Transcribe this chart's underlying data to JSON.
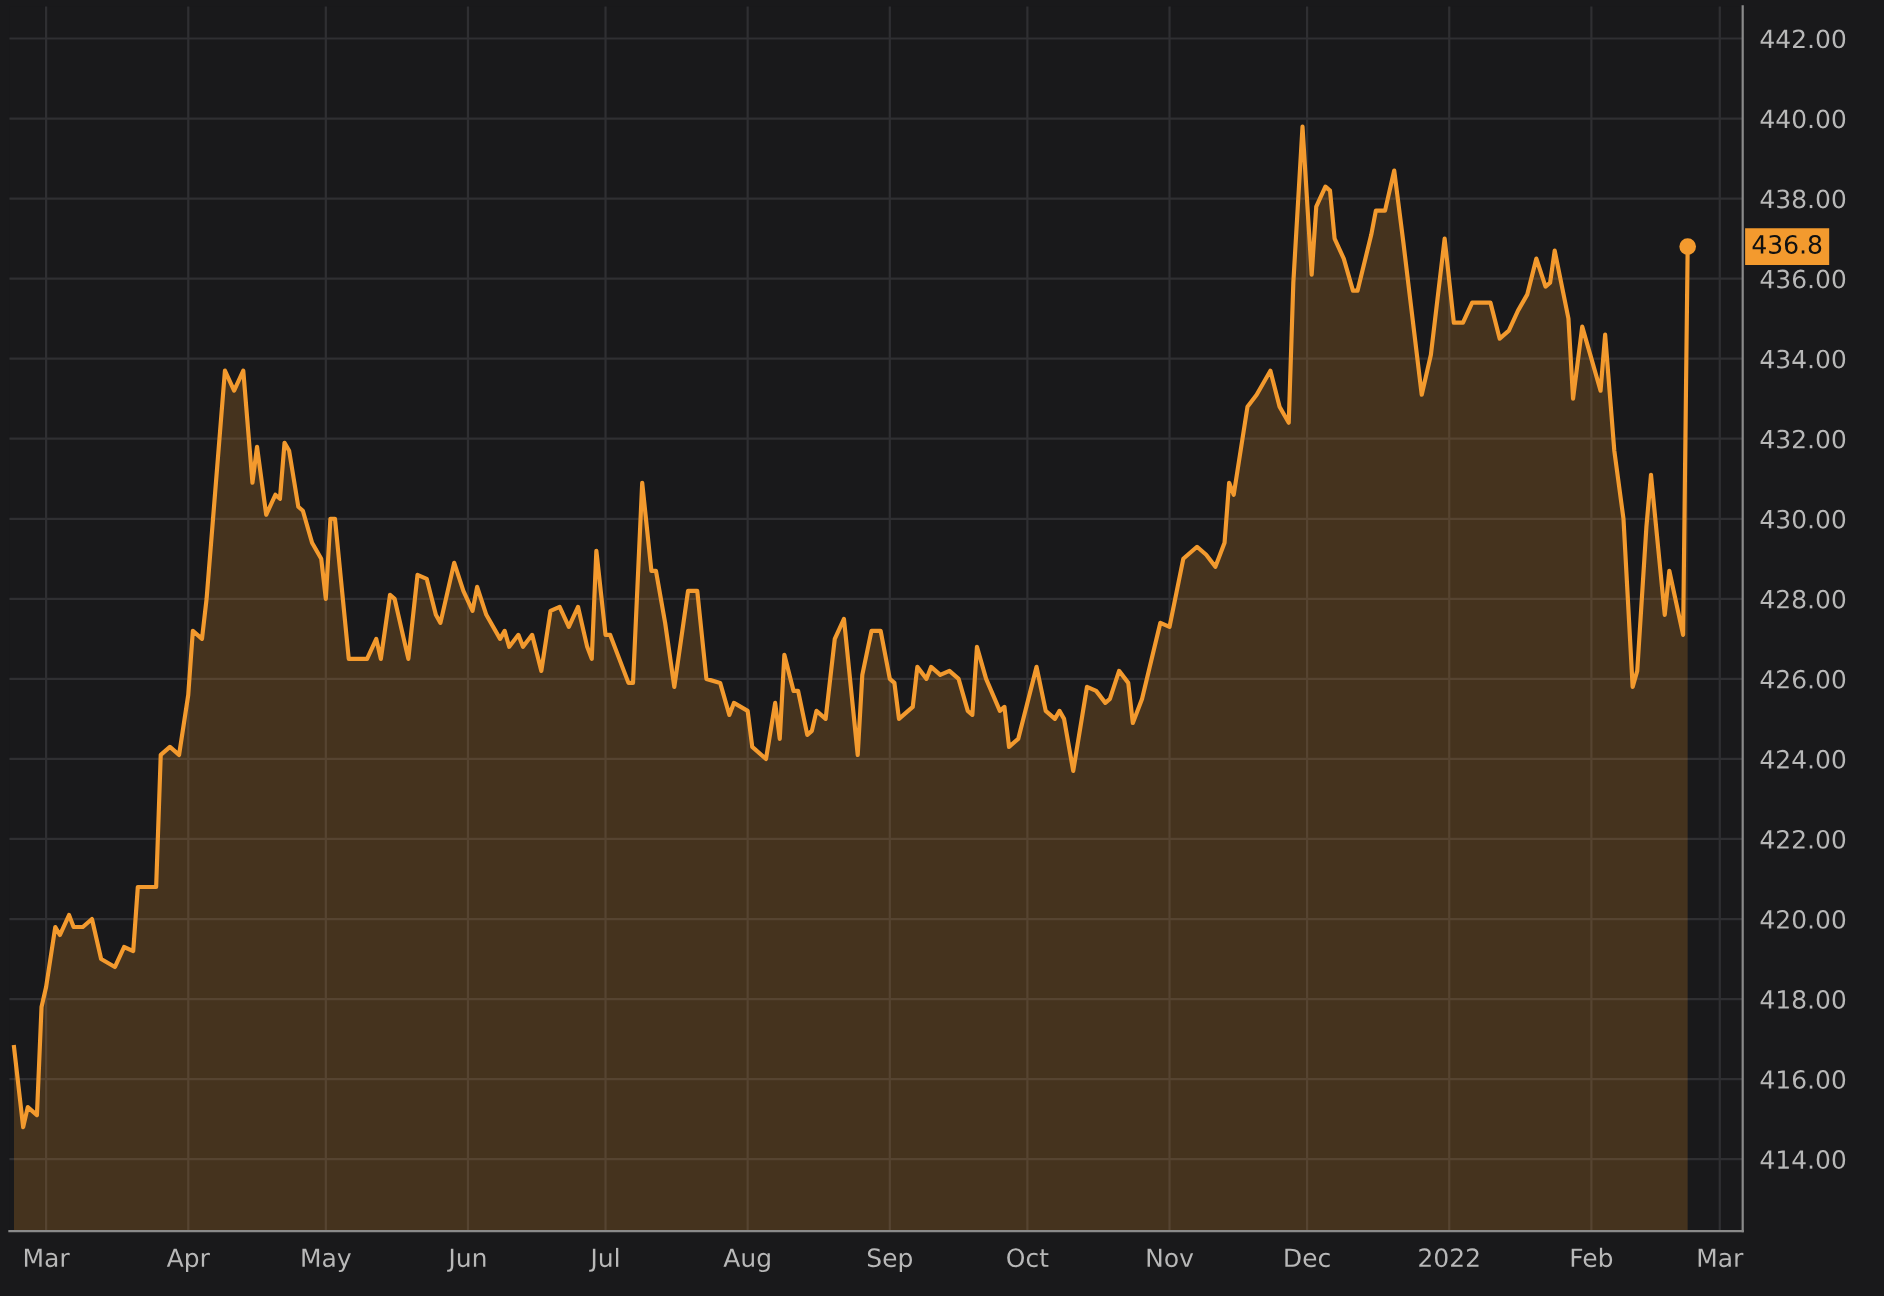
{
  "chart_data": {
    "type": "area",
    "x": [
      "2021-02-22",
      "2021-02-24",
      "2021-02-25",
      "2021-02-27",
      "2021-02-28",
      "2021-03-01",
      "2021-03-03",
      "2021-03-04",
      "2021-03-06",
      "2021-03-07",
      "2021-03-09",
      "2021-03-11",
      "2021-03-13",
      "2021-03-16",
      "2021-03-18",
      "2021-03-20",
      "2021-03-21",
      "2021-03-25",
      "2021-03-26",
      "2021-03-28",
      "2021-03-30",
      "2021-04-01",
      "2021-04-02",
      "2021-04-04",
      "2021-04-05",
      "2021-04-09",
      "2021-04-11",
      "2021-04-13",
      "2021-04-15",
      "2021-04-16",
      "2021-04-18",
      "2021-04-20",
      "2021-04-21",
      "2021-04-22",
      "2021-04-23",
      "2021-04-25",
      "2021-04-26",
      "2021-04-28",
      "2021-04-30",
      "2021-05-01",
      "2021-05-02",
      "2021-05-03",
      "2021-05-06",
      "2021-05-10",
      "2021-05-12",
      "2021-05-13",
      "2021-05-15",
      "2021-05-16",
      "2021-05-19",
      "2021-05-21",
      "2021-05-23",
      "2021-05-25",
      "2021-05-26",
      "2021-05-29",
      "2021-05-31",
      "2021-06-02",
      "2021-06-03",
      "2021-06-05",
      "2021-06-08",
      "2021-06-09",
      "2021-06-10",
      "2021-06-12",
      "2021-06-13",
      "2021-06-15",
      "2021-06-17",
      "2021-06-19",
      "2021-06-21",
      "2021-06-23",
      "2021-06-25",
      "2021-06-27",
      "2021-06-28",
      "2021-06-29",
      "2021-07-01",
      "2021-07-02",
      "2021-07-06",
      "2021-07-07",
      "2021-07-09",
      "2021-07-11",
      "2021-07-12",
      "2021-07-14",
      "2021-07-16",
      "2021-07-19",
      "2021-07-21",
      "2021-07-23",
      "2021-07-26",
      "2021-07-28",
      "2021-07-29",
      "2021-08-01",
      "2021-08-02",
      "2021-08-05",
      "2021-08-07",
      "2021-08-08",
      "2021-08-09",
      "2021-08-11",
      "2021-08-12",
      "2021-08-14",
      "2021-08-15",
      "2021-08-16",
      "2021-08-18",
      "2021-08-20",
      "2021-08-22",
      "2021-08-25",
      "2021-08-26",
      "2021-08-28",
      "2021-08-30",
      "2021-09-01",
      "2021-09-02",
      "2021-09-03",
      "2021-09-06",
      "2021-09-07",
      "2021-09-09",
      "2021-09-10",
      "2021-09-12",
      "2021-09-14",
      "2021-09-16",
      "2021-09-18",
      "2021-09-19",
      "2021-09-20",
      "2021-09-22",
      "2021-09-25",
      "2021-09-26",
      "2021-09-27",
      "2021-09-29",
      "2021-10-03",
      "2021-10-05",
      "2021-10-07",
      "2021-10-08",
      "2021-10-09",
      "2021-10-11",
      "2021-10-13",
      "2021-10-14",
      "2021-10-16",
      "2021-10-18",
      "2021-10-19",
      "2021-10-21",
      "2021-10-23",
      "2021-10-24",
      "2021-10-26",
      "2021-10-30",
      "2021-11-01",
      "2021-11-04",
      "2021-11-07",
      "2021-11-09",
      "2021-11-11",
      "2021-11-13",
      "2021-11-14",
      "2021-11-15",
      "2021-11-18",
      "2021-11-20",
      "2021-11-23",
      "2021-11-25",
      "2021-11-27",
      "2021-11-28",
      "2021-11-30",
      "2021-12-02",
      "2021-12-03",
      "2021-12-05",
      "2021-12-06",
      "2021-12-07",
      "2021-12-09",
      "2021-12-11",
      "2021-12-12",
      "2021-12-15",
      "2021-12-16",
      "2021-12-18",
      "2021-12-20",
      "2021-12-22",
      "2021-12-26",
      "2021-12-28",
      "2021-12-31",
      "2022-01-02",
      "2022-01-04",
      "2022-01-06",
      "2022-01-10",
      "2022-01-12",
      "2022-01-14",
      "2022-01-16",
      "2022-01-18",
      "2022-01-20",
      "2022-01-22",
      "2022-01-23",
      "2022-01-24",
      "2022-01-27",
      "2022-01-28",
      "2022-01-30",
      "2022-02-01",
      "2022-02-03",
      "2022-02-04",
      "2022-02-06",
      "2022-02-08",
      "2022-02-10",
      "2022-02-11",
      "2022-02-13",
      "2022-02-14",
      "2022-02-17",
      "2022-02-18",
      "2022-02-21",
      "2022-02-22"
    ],
    "series": [
      {
        "color": "#f39a2e",
        "values": [
          416.8,
          414.8,
          415.3,
          415.1,
          417.8,
          418.3,
          419.8,
          419.6,
          420.1,
          419.8,
          419.8,
          420.0,
          419.0,
          418.8,
          419.3,
          419.2,
          420.8,
          420.8,
          424.1,
          424.3,
          424.1,
          425.6,
          427.2,
          427.0,
          428.0,
          433.7,
          433.2,
          433.7,
          430.9,
          431.8,
          430.1,
          430.6,
          430.5,
          431.9,
          431.7,
          430.3,
          430.2,
          429.4,
          429.0,
          428.0,
          430.0,
          430.0,
          426.5,
          426.5,
          427.0,
          426.5,
          428.1,
          428.0,
          426.5,
          428.6,
          428.5,
          427.6,
          427.4,
          428.9,
          428.2,
          427.7,
          428.3,
          427.6,
          427.0,
          427.2,
          426.8,
          427.1,
          426.8,
          427.1,
          426.2,
          427.7,
          427.8,
          427.3,
          427.8,
          426.8,
          426.5,
          429.2,
          427.1,
          427.1,
          425.9,
          425.9,
          430.9,
          428.7,
          428.7,
          427.4,
          425.8,
          428.2,
          428.2,
          426.0,
          425.9,
          425.1,
          425.4,
          425.2,
          424.3,
          424.0,
          425.4,
          424.5,
          426.6,
          425.7,
          425.7,
          424.6,
          424.7,
          425.2,
          425.0,
          427.0,
          427.5,
          424.1,
          426.1,
          427.2,
          427.2,
          426.0,
          425.9,
          425.0,
          425.3,
          426.3,
          426.0,
          426.3,
          426.1,
          426.2,
          426.0,
          425.2,
          425.1,
          426.8,
          426.0,
          425.2,
          425.3,
          424.3,
          424.5,
          426.3,
          425.2,
          425.0,
          425.2,
          425.0,
          423.7,
          425.1,
          425.8,
          425.7,
          425.4,
          425.5,
          426.2,
          425.9,
          424.9,
          425.5,
          427.4,
          427.3,
          429.0,
          429.3,
          429.1,
          428.8,
          429.4,
          430.9,
          430.6,
          432.8,
          433.1,
          433.7,
          432.8,
          432.4,
          435.9,
          439.8,
          436.1,
          437.8,
          438.3,
          438.2,
          437.0,
          436.5,
          435.7,
          435.7,
          437.1,
          437.7,
          437.7,
          438.7,
          436.9,
          433.1,
          434.1,
          437.0,
          434.9,
          434.9,
          435.4,
          435.4,
          434.5,
          434.7,
          435.2,
          435.6,
          436.5,
          435.8,
          435.9,
          436.7,
          435.0,
          433.0,
          434.8,
          434.0,
          433.2,
          434.6,
          431.7,
          430.0,
          425.8,
          426.2,
          429.8,
          431.1,
          427.6,
          428.7,
          427.1,
          436.8
        ]
      }
    ],
    "xlim": [
      "2021-02-21",
      "2022-03-06"
    ],
    "xticks": [
      {
        "value": "2021-03-01",
        "label": "Mar"
      },
      {
        "value": "2021-04-01",
        "label": "Apr"
      },
      {
        "value": "2021-05-01",
        "label": "May"
      },
      {
        "value": "2021-06-01",
        "label": "Jun"
      },
      {
        "value": "2021-07-01",
        "label": "Jul"
      },
      {
        "value": "2021-08-01",
        "label": "Aug"
      },
      {
        "value": "2021-09-01",
        "label": "Sep"
      },
      {
        "value": "2021-10-01",
        "label": "Oct"
      },
      {
        "value": "2021-11-01",
        "label": "Nov"
      },
      {
        "value": "2021-12-01",
        "label": "Dec"
      },
      {
        "value": "2022-01-01",
        "label": "2022"
      },
      {
        "value": "2022-02-01",
        "label": "Feb"
      },
      {
        "value": "2022-03-01",
        "label": "Mar"
      }
    ],
    "ylim": [
      412.2,
      442.8
    ],
    "yticks": [
      {
        "value": 414,
        "label": "414.00"
      },
      {
        "value": 416,
        "label": "416.00"
      },
      {
        "value": 418,
        "label": "418.00"
      },
      {
        "value": 420,
        "label": "420.00"
      },
      {
        "value": 422,
        "label": "422.00"
      },
      {
        "value": 424,
        "label": "424.00"
      },
      {
        "value": 426,
        "label": "426.00"
      },
      {
        "value": 428,
        "label": "428.00"
      },
      {
        "value": 430,
        "label": "430.00"
      },
      {
        "value": 432,
        "label": "432.00"
      },
      {
        "value": 434,
        "label": "434.00"
      },
      {
        "value": 436,
        "label": "436.00"
      },
      {
        "value": 438,
        "label": "438.00"
      },
      {
        "value": 440,
        "label": "440.00"
      },
      {
        "value": 442,
        "label": "442.00"
      }
    ],
    "grid": true,
    "annotations": [
      {
        "text": "436.8",
        "x": "2022-02-22",
        "y": 436.8
      }
    ]
  }
}
